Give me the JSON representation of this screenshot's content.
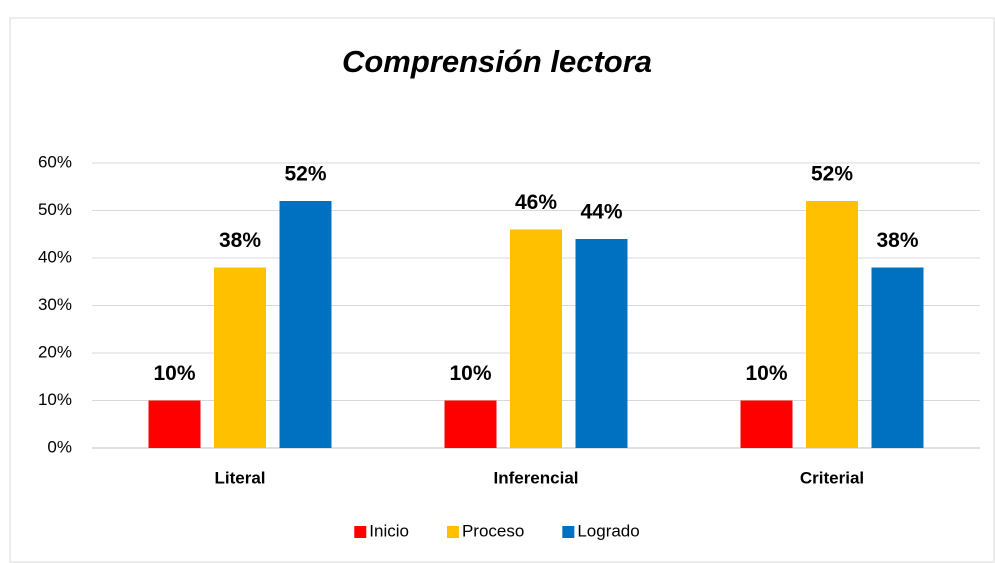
{
  "chart_data": {
    "type": "bar",
    "title": "Comprensión lectora",
    "categories": [
      "Literal",
      "Inferencial",
      "Criterial"
    ],
    "series": [
      {
        "name": "Inicio",
        "color": "#ff0000",
        "values": [
          10,
          10,
          10
        ],
        "value_labels": [
          "10%",
          "10%",
          "10%"
        ]
      },
      {
        "name": "Proceso",
        "color": "#ffc000",
        "values": [
          38,
          46,
          52
        ],
        "value_labels": [
          "38%",
          "46%",
          "52%"
        ]
      },
      {
        "name": "Logrado",
        "color": "#0070c0",
        "values": [
          52,
          44,
          38
        ],
        "value_labels": [
          "52%",
          "44%",
          "38%"
        ]
      }
    ],
    "ylim": [
      0,
      60
    ],
    "yticks": [
      {
        "value": 0,
        "label": "0%"
      },
      {
        "value": 10,
        "label": "10%"
      },
      {
        "value": 20,
        "label": "20%"
      },
      {
        "value": 30,
        "label": "30%"
      },
      {
        "value": 40,
        "label": "40%"
      },
      {
        "value": 50,
        "label": "50%"
      },
      {
        "value": 60,
        "label": "60%"
      }
    ],
    "grid": true,
    "legend": "bottom"
  }
}
